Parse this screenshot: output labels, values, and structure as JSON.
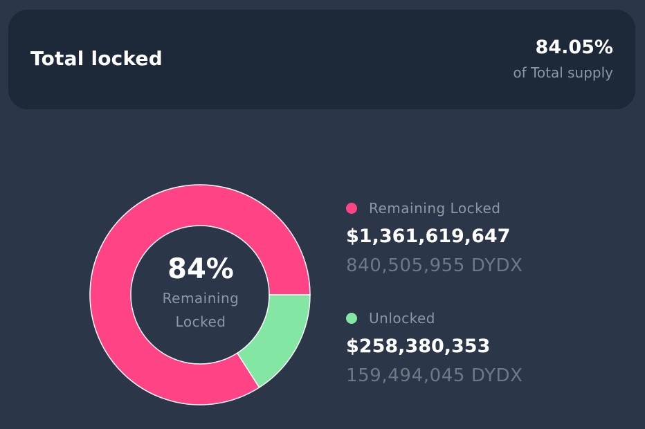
{
  "header": {
    "title": "Total locked",
    "percentage": "84.05%",
    "subtitle": "of Total supply"
  },
  "chart_data": {
    "type": "pie",
    "categories": [
      "Remaining Locked",
      "Unlocked"
    ],
    "values": [
      84.05,
      15.95
    ],
    "colors": [
      "#ff4384",
      "#84e6a3"
    ],
    "center": {
      "value": "84%",
      "label": "Remaining Locked"
    }
  },
  "legend": [
    {
      "label": "Remaining Locked",
      "usd": "$1,361,619,647",
      "tokens": "840,505,955 DYDX",
      "color": "#ff4384"
    },
    {
      "label": "Unlocked",
      "usd": "$258,380,353",
      "tokens": "159,494,045 DYDX",
      "color": "#84e6a3"
    }
  ]
}
